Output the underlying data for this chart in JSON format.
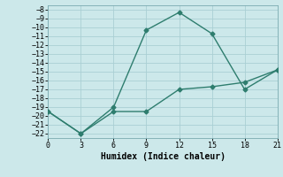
{
  "xlabel": "Humidex (Indice chaleur)",
  "background_color": "#cce8ea",
  "line_color": "#2e7d6e",
  "grid_color": "#aacfd4",
  "xlim": [
    0,
    21
  ],
  "ylim": [
    -22.5,
    -7.5
  ],
  "xticks": [
    0,
    3,
    6,
    9,
    12,
    15,
    18,
    21
  ],
  "yticks": [
    -8,
    -9,
    -10,
    -11,
    -12,
    -13,
    -14,
    -15,
    -16,
    -17,
    -18,
    -19,
    -20,
    -21,
    -22
  ],
  "line1_x": [
    0,
    3,
    6,
    9,
    12,
    15,
    18,
    21
  ],
  "line1_y": [
    -19.5,
    -22,
    -19,
    -10.3,
    -8.3,
    -10.7,
    -17.0,
    -14.8
  ],
  "line2_x": [
    0,
    3,
    6,
    9,
    12,
    15,
    18,
    21
  ],
  "line2_y": [
    -19.5,
    -22,
    -19.5,
    -19.5,
    -17.0,
    -16.7,
    -16.2,
    -14.8
  ],
  "marker_style": "D",
  "marker_size": 2.5,
  "line_width": 1.0,
  "tick_fontsize": 6.0,
  "xlabel_fontsize": 7.0
}
